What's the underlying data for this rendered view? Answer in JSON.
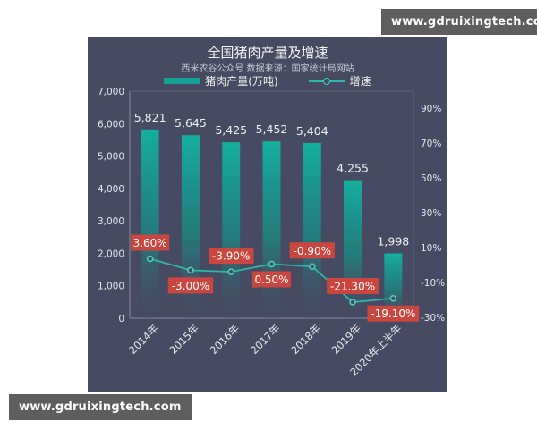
{
  "watermarks": {
    "top_right": "www.gdruixingtech.com",
    "bottom_left": "www.gdruixingtech.com"
  },
  "chart_data": {
    "type": "bar+line",
    "title": "全国猪肉产量及增速",
    "subtitle": "西米农谷公众号 数据来源：国家统计局网站",
    "legend": [
      "猪肉产量(万吨)",
      "增速"
    ],
    "legend_position": "top",
    "categories": [
      "2014年",
      "2015年",
      "2016年",
      "2017年",
      "2018年",
      "2019年",
      "2020年上半年"
    ],
    "series": [
      {
        "name": "猪肉产量(万吨)",
        "type": "bar",
        "axis": "left",
        "values": [
          5821,
          5645,
          5425,
          5452,
          5404,
          4255,
          1998
        ],
        "labels": [
          "5,821",
          "5,645",
          "5,425",
          "5,452",
          "5,404",
          "4,255",
          "1,998"
        ],
        "color": "#14b09c"
      },
      {
        "name": "增速",
        "type": "line",
        "axis": "right",
        "values": [
          3.6,
          -3.0,
          -3.9,
          0.5,
          -0.9,
          -21.3,
          -19.1
        ],
        "labels": [
          "3.60%",
          "-3.00%",
          "-3.90%",
          "0.50%",
          "-0.90%",
          "-21.30%",
          "-19.10%"
        ],
        "color": "#2ab8a8",
        "label_bg": "#c9473f"
      }
    ],
    "y_left": {
      "ticks": [
        "0",
        "1,000",
        "2,000",
        "3,000",
        "4,000",
        "5,000",
        "6,000",
        "7,000"
      ],
      "range": [
        0,
        7000
      ]
    },
    "y_right": {
      "ticks": [
        "-30%",
        "-10%",
        "10%",
        "30%",
        "50%",
        "70%",
        "90%"
      ],
      "range": [
        -30,
        100
      ]
    },
    "xlabel": "",
    "ylabel": "",
    "grid": false,
    "colors": {
      "background": "#464a63",
      "bar": "#14b09c",
      "line": "#2ab8a8",
      "label_box": "#c9473f"
    }
  }
}
